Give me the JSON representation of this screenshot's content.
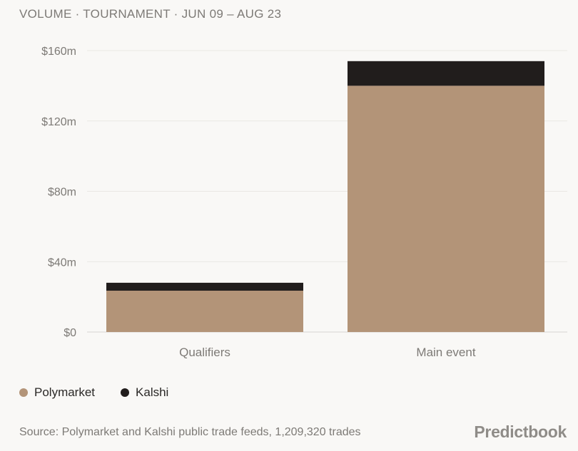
{
  "title": "VOLUME · TOURNAMENT · JUN 09 – AUG 23",
  "chart_data": {
    "type": "bar",
    "stacked": true,
    "categories": [
      "Qualifiers",
      "Main event"
    ],
    "series": [
      {
        "name": "Polymarket",
        "color": "#b39478",
        "values": [
          23.5,
          140
        ]
      },
      {
        "name": "Kalshi",
        "color": "#211d1c",
        "values": [
          4.5,
          14
        ]
      }
    ],
    "ylim": [
      0,
      160
    ],
    "yticks": [
      0,
      40,
      80,
      120,
      160
    ],
    "ytick_labels": [
      "$0",
      "$40m",
      "$80m",
      "$120m",
      "$160m"
    ],
    "grid": true,
    "legend_position": "bottom-left"
  },
  "legend": {
    "items": [
      {
        "label": "Polymarket",
        "color": "#b39478"
      },
      {
        "label": "Kalshi",
        "color": "#211d1c"
      }
    ]
  },
  "source": "Source: Polymarket and Kalshi public trade feeds, 1,209,320 trades",
  "brand": "Predictbook"
}
